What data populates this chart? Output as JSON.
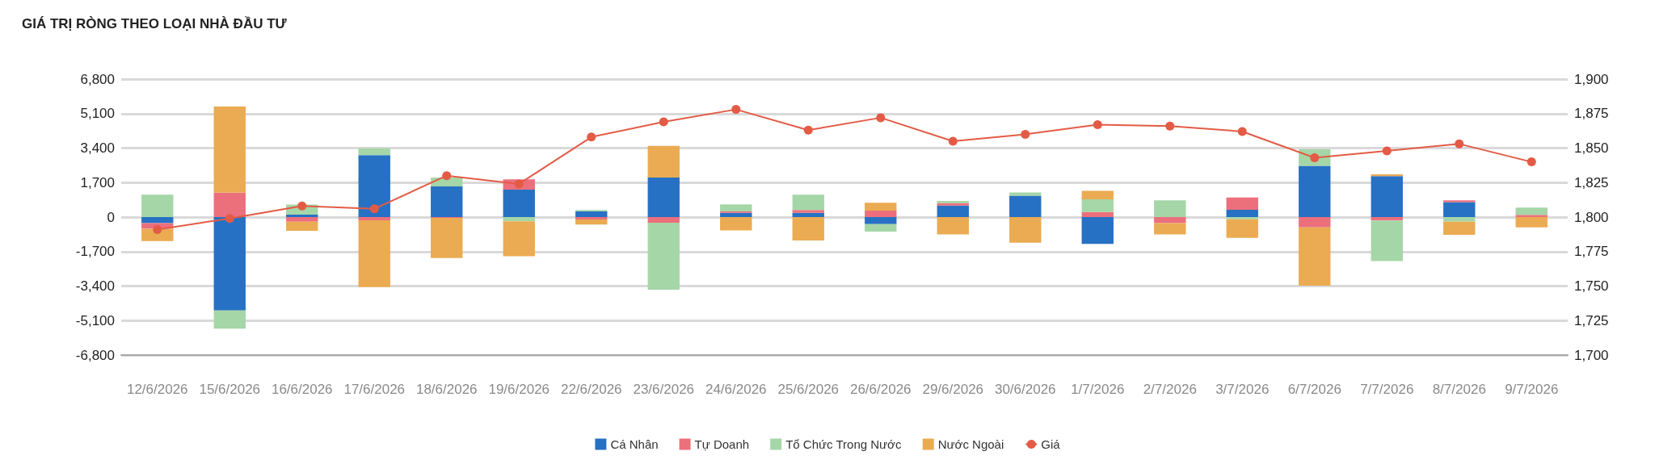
{
  "chart_data": {
    "type": "bar",
    "title": "GIÁ TRỊ RÒNG THEO LOẠI NHÀ ĐẦU TƯ",
    "stacked": true,
    "categories": [
      "12/6/2026",
      "15/6/2026",
      "16/6/2026",
      "17/6/2026",
      "18/6/2026",
      "19/6/2026",
      "22/6/2026",
      "23/6/2026",
      "24/6/2026",
      "25/6/2026",
      "26/6/2026",
      "29/6/2026",
      "30/6/2026",
      "1/7/2026",
      "2/7/2026",
      "3/7/2026",
      "6/7/2026",
      "7/7/2026",
      "8/7/2026",
      "9/7/2026"
    ],
    "series": [
      {
        "name": "Cá Nhân",
        "color": "#2771c4",
        "values": [
          -300,
          -4600,
          120,
          3050,
          1510,
          1350,
          280,
          1950,
          210,
          210,
          -350,
          570,
          1050,
          -1320,
          0,
          360,
          2530,
          2020,
          740,
          0
        ]
      },
      {
        "name": "Tự Doanh",
        "color": "#ec6f7c",
        "values": [
          -280,
          1200,
          -230,
          -160,
          -40,
          510,
          -120,
          -280,
          70,
          140,
          320,
          120,
          0,
          250,
          -300,
          600,
          -510,
          -170,
          90,
          110
        ]
      },
      {
        "name": "Tổ Chức Trong Nước",
        "color": "#a5d6a7",
        "values": [
          1100,
          -900,
          500,
          340,
          440,
          -210,
          70,
          -3300,
          350,
          750,
          -370,
          110,
          160,
          620,
          830,
          -110,
          810,
          -2000,
          -230,
          360
        ]
      },
      {
        "name": "Nước Ngoài",
        "color": "#ebab52",
        "values": [
          -600,
          4250,
          -450,
          -3290,
          -1980,
          -1720,
          -250,
          1560,
          -660,
          -1150,
          390,
          -850,
          -1260,
          420,
          -550,
          -910,
          -2870,
          90,
          -640,
          -510
        ]
      },
      {
        "name": "Giá",
        "type": "line",
        "axis": "y2",
        "color": "#e35b45",
        "marker": "circle",
        "values": [
          1791,
          1799,
          1808,
          1806,
          1830,
          1824,
          1858,
          1869,
          1878,
          1863,
          1872,
          1855,
          1860,
          1867,
          1866,
          1862,
          1843,
          1848,
          1853,
          1840
        ]
      }
    ],
    "ylim": [
      -6800,
      6800
    ],
    "yticks": [
      {
        "value": -6800,
        "label": "-6,800"
      },
      {
        "value": -5100,
        "label": "-5,100"
      },
      {
        "value": -3400,
        "label": "-3,400"
      },
      {
        "value": -1700,
        "label": "-1,700"
      },
      0,
      {
        "value": 1700,
        "label": "1,700"
      },
      {
        "value": 3400,
        "label": "3,400"
      },
      {
        "value": 5100,
        "label": "5,100"
      },
      {
        "value": 6800,
        "label": "6,800"
      }
    ],
    "y2lim": [
      1700,
      1900
    ],
    "y2ticks": [
      {
        "value": 1700,
        "label": "1,700"
      },
      {
        "value": 1725,
        "label": "1,725"
      },
      {
        "value": 1750,
        "label": "1,750"
      },
      {
        "value": 1775,
        "label": "1,775"
      },
      {
        "value": 1800,
        "label": "1,800"
      },
      {
        "value": 1825,
        "label": "1,825"
      },
      {
        "value": 1850,
        "label": "1,850"
      },
      {
        "value": 1875,
        "label": "1,875"
      },
      {
        "value": 1900,
        "label": "1,900"
      }
    ],
    "grid": "y",
    "legend": "bottom"
  }
}
